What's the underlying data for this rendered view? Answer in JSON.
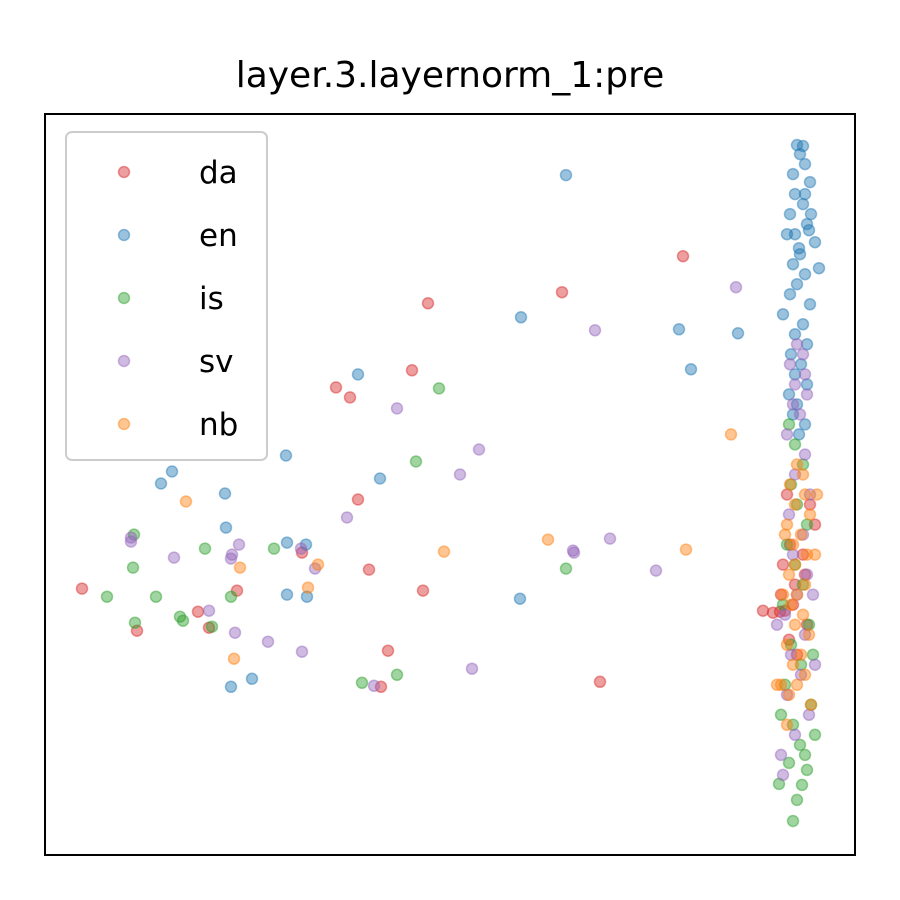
{
  "chart_data": {
    "type": "scatter",
    "title": "layer.3.layernorm_1:pre",
    "xlabel": "",
    "ylabel": "",
    "xlim": [
      0,
      810
    ],
    "ylim": [
      0,
      740
    ],
    "grid": false,
    "axis_ticks": false,
    "legend": {
      "placement": "top-left",
      "entries": [
        "da",
        "en",
        "is",
        "sv",
        "nb"
      ]
    },
    "point_alpha": 0.45,
    "series": [
      {
        "name": "da",
        "color": "#d62728",
        "points": [
          [
            638,
            598
          ],
          [
            517,
            562
          ],
          [
            383,
            551
          ],
          [
            367,
            484
          ],
          [
            291,
            467
          ],
          [
            305,
            457
          ],
          [
            313,
            355
          ],
          [
            257,
            302
          ],
          [
            192,
            264
          ],
          [
            37,
            266
          ],
          [
            92,
            224
          ],
          [
            153,
            243
          ],
          [
            164,
            227
          ],
          [
            324,
            285
          ],
          [
            378,
            264
          ],
          [
            343,
            204
          ],
          [
            336,
            168
          ],
          [
            555,
            173
          ],
          [
            718,
            244
          ],
          [
            728,
            242
          ],
          [
            740,
            244
          ],
          [
            735,
            243
          ],
          [
            736,
            260
          ],
          [
            750,
            270
          ],
          [
            760,
            280
          ],
          [
            738,
            290
          ],
          [
            745,
            310
          ],
          [
            770,
            330
          ],
          [
            765,
            350
          ],
          [
            742,
            360
          ],
          [
            758,
            300
          ],
          [
            762,
            230
          ],
          [
            748,
            250
          ],
          [
            752,
            200
          ],
          [
            744,
            215
          ]
        ]
      },
      {
        "name": "en",
        "color": "#1f77b4",
        "points": [
          [
            521,
            679
          ],
          [
            476,
            537
          ],
          [
            634,
            525
          ],
          [
            693,
            521
          ],
          [
            646,
            485
          ],
          [
            313,
            480
          ],
          [
            241,
            399
          ],
          [
            127,
            383
          ],
          [
            116,
            371
          ],
          [
            335,
            376
          ],
          [
            180,
            361
          ],
          [
            181,
            327
          ],
          [
            242,
            312
          ],
          [
            261,
            310
          ],
          [
            242,
            260
          ],
          [
            262,
            258
          ],
          [
            475,
            256
          ],
          [
            207,
            176
          ],
          [
            186,
            168
          ],
          [
            752,
            709
          ],
          [
            758,
            708
          ],
          [
            755,
            700
          ],
          [
            760,
            690
          ],
          [
            748,
            680
          ],
          [
            765,
            672
          ],
          [
            750,
            660
          ],
          [
            758,
            650
          ],
          [
            745,
            640
          ],
          [
            762,
            630
          ],
          [
            750,
            620
          ],
          [
            770,
            612
          ],
          [
            755,
            600
          ],
          [
            748,
            590
          ],
          [
            760,
            580
          ],
          [
            752,
            570
          ],
          [
            745,
            560
          ],
          [
            765,
            550
          ],
          [
            738,
            540
          ],
          [
            758,
            530
          ],
          [
            750,
            520
          ],
          [
            762,
            510
          ],
          [
            746,
            500
          ],
          [
            756,
            490
          ],
          [
            750,
            480
          ],
          [
            762,
            470
          ],
          [
            744,
            460
          ],
          [
            752,
            450
          ],
          [
            748,
            440
          ],
          [
            760,
            430
          ],
          [
            754,
            420
          ],
          [
            760,
            660
          ],
          [
            766,
            640
          ],
          [
            742,
            620
          ],
          [
            774,
            586
          ],
          [
            754,
            606
          ],
          [
            764,
            624
          ]
        ]
      },
      {
        "name": "is",
        "color": "#2ca02c",
        "points": [
          [
            394,
            466
          ],
          [
            371,
            393
          ],
          [
            89,
            320
          ],
          [
            160,
            306
          ],
          [
            229,
            306
          ],
          [
            521,
            286
          ],
          [
            88,
            287
          ],
          [
            62,
            258
          ],
          [
            111,
            258
          ],
          [
            186,
            258
          ],
          [
            90,
            232
          ],
          [
            135,
            238
          ],
          [
            138,
            234
          ],
          [
            167,
            228
          ],
          [
            352,
            180
          ],
          [
            317,
            172
          ],
          [
            748,
            34
          ],
          [
            752,
            55
          ],
          [
            757,
            70
          ],
          [
            734,
            71
          ],
          [
            744,
            92
          ],
          [
            762,
            85
          ],
          [
            755,
            110
          ],
          [
            748,
            130
          ],
          [
            766,
            150
          ],
          [
            740,
            170
          ],
          [
            756,
            190
          ],
          [
            746,
            210
          ],
          [
            764,
            230
          ],
          [
            738,
            250
          ],
          [
            758,
            270
          ],
          [
            750,
            290
          ],
          [
            742,
            310
          ],
          [
            762,
            330
          ],
          [
            752,
            350
          ],
          [
            746,
            370
          ],
          [
            758,
            390
          ],
          [
            750,
            410
          ],
          [
            744,
            430
          ],
          [
            760,
            100
          ],
          [
            770,
            120
          ],
          [
            736,
            140
          ],
          [
            768,
            200
          ]
        ]
      },
      {
        "name": "sv",
        "color": "#9467bd",
        "points": [
          [
            691,
            567
          ],
          [
            550,
            524
          ],
          [
            352,
            446
          ],
          [
            434,
            405
          ],
          [
            415,
            380
          ],
          [
            302,
            337
          ],
          [
            86,
            313
          ],
          [
            565,
            316
          ],
          [
            528,
            304
          ],
          [
            129,
            297
          ],
          [
            194,
            310
          ],
          [
            186,
            296
          ],
          [
            529,
            302
          ],
          [
            611,
            284
          ],
          [
            270,
            286
          ],
          [
            187,
            300
          ],
          [
            164,
            244
          ],
          [
            190,
            222
          ],
          [
            223,
            213
          ],
          [
            257,
            203
          ],
          [
            427,
            186
          ],
          [
            329,
            169
          ],
          [
            256,
            306
          ],
          [
            86,
            317
          ],
          [
            752,
            510
          ],
          [
            758,
            500
          ],
          [
            745,
            490
          ],
          [
            760,
            480
          ],
          [
            750,
            470
          ],
          [
            762,
            460
          ],
          [
            748,
            450
          ],
          [
            755,
            440
          ],
          [
            742,
            420
          ],
          [
            760,
            400
          ],
          [
            750,
            380
          ],
          [
            765,
            360
          ],
          [
            744,
            340
          ],
          [
            758,
            320
          ],
          [
            748,
            300
          ],
          [
            762,
            280
          ],
          [
            752,
            260
          ],
          [
            740,
            240
          ],
          [
            760,
            220
          ],
          [
            746,
            200
          ],
          [
            756,
            180
          ],
          [
            742,
            160
          ],
          [
            764,
            140
          ],
          [
            750,
            120
          ],
          [
            736,
            100
          ],
          [
            768,
            260
          ],
          [
            732,
            230
          ],
          [
            770,
            190
          ],
          [
            738,
            80
          ]
        ]
      },
      {
        "name": "nb",
        "color": "#ff7f0e",
        "points": [
          [
            686,
            420
          ],
          [
            141,
            353
          ],
          [
            503,
            315
          ],
          [
            399,
            303
          ],
          [
            641,
            305
          ],
          [
            273,
            290
          ],
          [
            195,
            287
          ],
          [
            263,
            267
          ],
          [
            189,
            196
          ],
          [
            752,
            390
          ],
          [
            758,
            380
          ],
          [
            745,
            370
          ],
          [
            760,
            360
          ],
          [
            750,
            350
          ],
          [
            765,
            340
          ],
          [
            742,
            330
          ],
          [
            756,
            320
          ],
          [
            748,
            310
          ],
          [
            762,
            300
          ],
          [
            750,
            290
          ],
          [
            744,
            280
          ],
          [
            760,
            270
          ],
          [
            752,
            260
          ],
          [
            746,
            250
          ],
          [
            758,
            240
          ],
          [
            750,
            230
          ],
          [
            764,
            220
          ],
          [
            742,
            210
          ],
          [
            756,
            200
          ],
          [
            748,
            190
          ],
          [
            760,
            180
          ],
          [
            752,
            170
          ],
          [
            744,
            160
          ],
          [
            766,
            150
          ],
          [
            736,
            170
          ],
          [
            740,
            320
          ],
          [
            770,
            300
          ],
          [
            772,
            360
          ],
          [
            738,
            260
          ],
          [
            732,
            170
          ],
          [
            742,
            130
          ]
        ]
      }
    ]
  }
}
